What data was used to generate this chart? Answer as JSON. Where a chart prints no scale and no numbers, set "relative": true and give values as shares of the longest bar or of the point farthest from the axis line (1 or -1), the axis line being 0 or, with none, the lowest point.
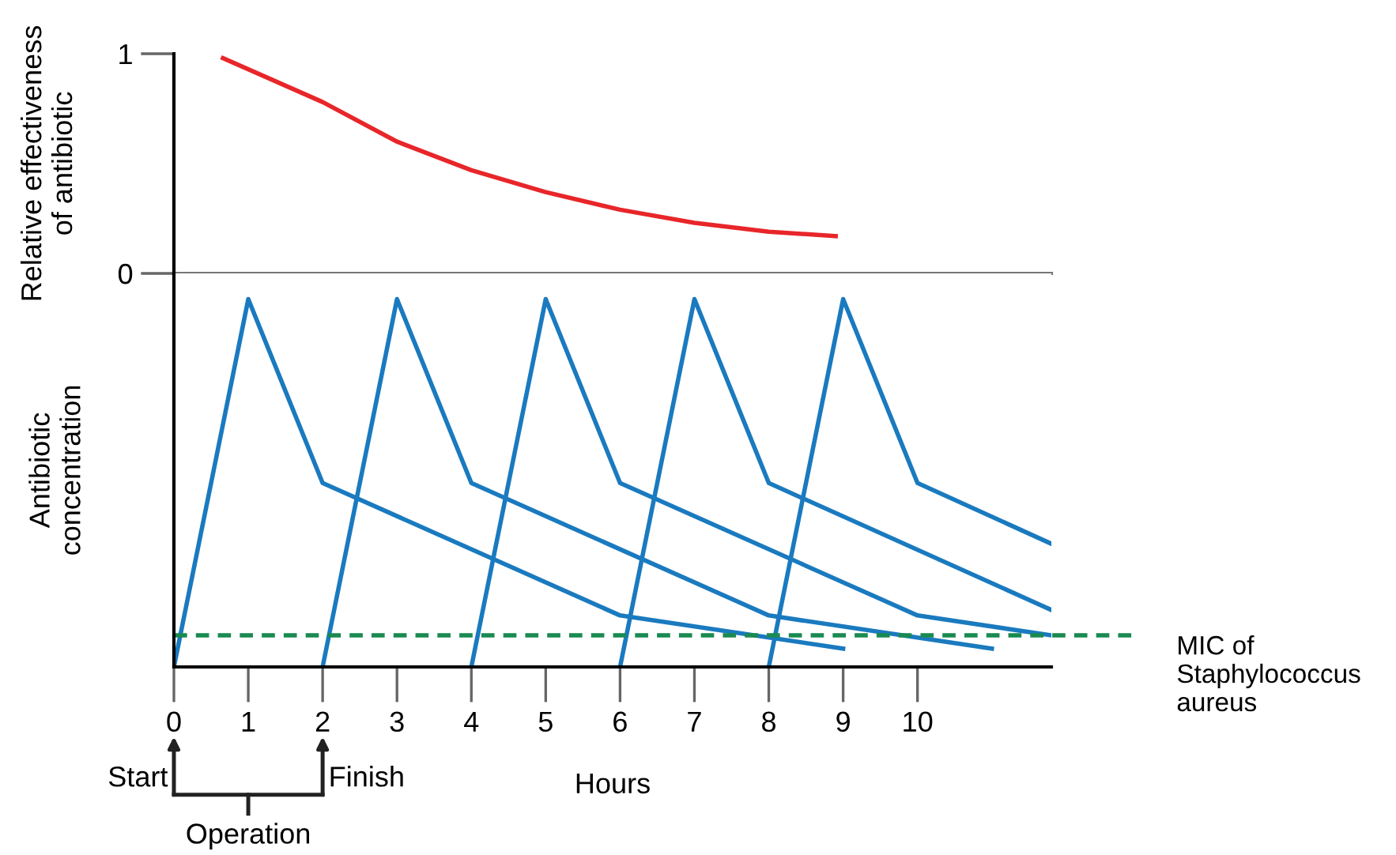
{
  "chart_data": [
    {
      "type": "line",
      "ylabel": "Relative effectiveness\nof antibiotic",
      "xlim": [
        0,
        11.8
      ],
      "ylim": [
        0,
        1
      ],
      "yticks": [
        0,
        1
      ],
      "tick_labels": "y",
      "grid": false,
      "marker": "none",
      "line_style": "solid",
      "series": [
        {
          "color": "#e8262a",
          "x": [
            0.66,
            2,
            3,
            4,
            5,
            6,
            7,
            8,
            8.9
          ],
          "values": [
            0.98,
            0.78,
            0.6,
            0.47,
            0.37,
            0.29,
            0.23,
            0.19,
            0.17
          ]
        }
      ]
    },
    {
      "type": "line",
      "relative": true,
      "ylabel": "Antibiotic\nconcentration",
      "xlabel": "Hours",
      "xlim": [
        0,
        11.8
      ],
      "xticks": [
        0,
        1,
        2,
        3,
        4,
        5,
        6,
        7,
        8,
        9,
        10
      ],
      "tick_labels": "x",
      "grid": false,
      "marker": "none",
      "line_style": "solid",
      "ref_lines": [
        {
          "axis": "y",
          "value": 0.086,
          "label": "MIC of Staphylococcus aureus",
          "color": "#1a8a50",
          "line_style": "dashed"
        }
      ],
      "annotations": [
        "Start",
        "Finish",
        "Operation"
      ],
      "series": [
        {
          "color": "#1a7abf",
          "x": [
            0,
            1,
            2,
            6,
            9
          ],
          "values": [
            0,
            1,
            0.5,
            0.14,
            0.05
          ]
        },
        {
          "color": "#1a7abf",
          "x": [
            2,
            3,
            4,
            8,
            11
          ],
          "values": [
            0,
            1,
            0.5,
            0.14,
            0.05
          ]
        },
        {
          "color": "#1a7abf",
          "x": [
            4,
            5,
            6,
            10,
            11.8
          ],
          "values": [
            0,
            1,
            0.5,
            0.14,
            0.086
          ]
        },
        {
          "color": "#1a7abf",
          "x": [
            6,
            7,
            8,
            11.8
          ],
          "values": [
            0,
            1,
            0.5,
            0.155
          ]
        },
        {
          "color": "#1a7abf",
          "x": [
            8,
            9,
            10,
            11.8
          ],
          "values": [
            0,
            1,
            0.5,
            0.335
          ]
        }
      ]
    }
  ]
}
